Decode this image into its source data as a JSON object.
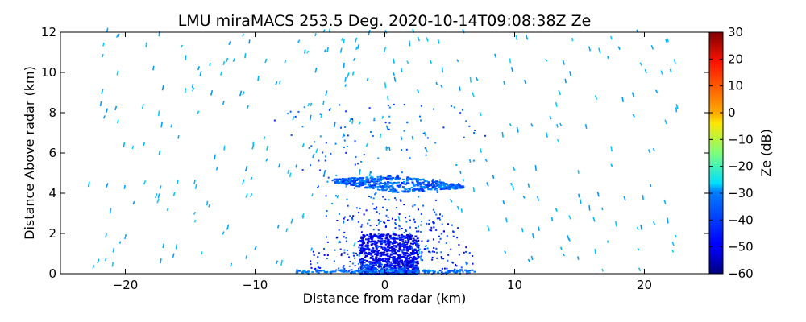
{
  "chart_data": {
    "type": "heatmap",
    "title": "LMU miraMACS 253.5 Deg. 2020-10-14T09:08:38Z  Ze",
    "xlabel": "Distance from radar (km)",
    "ylabel": "Distance Above radar  (km)",
    "xlim": [
      -25,
      25
    ],
    "ylim": [
      0,
      12
    ],
    "xticks": [
      -20,
      -10,
      0,
      10,
      20
    ],
    "xtick_labels": [
      "−20",
      "−10",
      "0",
      "10",
      "20"
    ],
    "yticks": [
      0,
      2,
      4,
      6,
      8,
      10,
      12
    ],
    "ytick_labels": [
      "0",
      "2",
      "4",
      "6",
      "8",
      "10",
      "12"
    ],
    "colorbar": {
      "label": "Ze (dB)",
      "range": [
        -60,
        30
      ],
      "ticks": [
        -60,
        -50,
        -40,
        -30,
        -20,
        -10,
        0,
        10,
        20,
        30
      ],
      "tick_labels": [
        "−60",
        "−50",
        "−40",
        "−30",
        "−20",
        "−10",
        "0",
        "10",
        "20",
        "30"
      ],
      "colormap": "jet"
    },
    "features": [
      {
        "name": "cloud layer",
        "x_range": [
          -4,
          6
        ],
        "height_km": 4.5,
        "ze_db": -40
      },
      {
        "name": "low precipitation core",
        "x_range": [
          -2,
          2.5
        ],
        "height_range_km": [
          0,
          2
        ],
        "ze_db": -50
      },
      {
        "name": "scattered echoes",
        "x_range": [
          -23,
          23
        ],
        "height_range_km": [
          0,
          12
        ],
        "ze_db": -33
      }
    ]
  }
}
